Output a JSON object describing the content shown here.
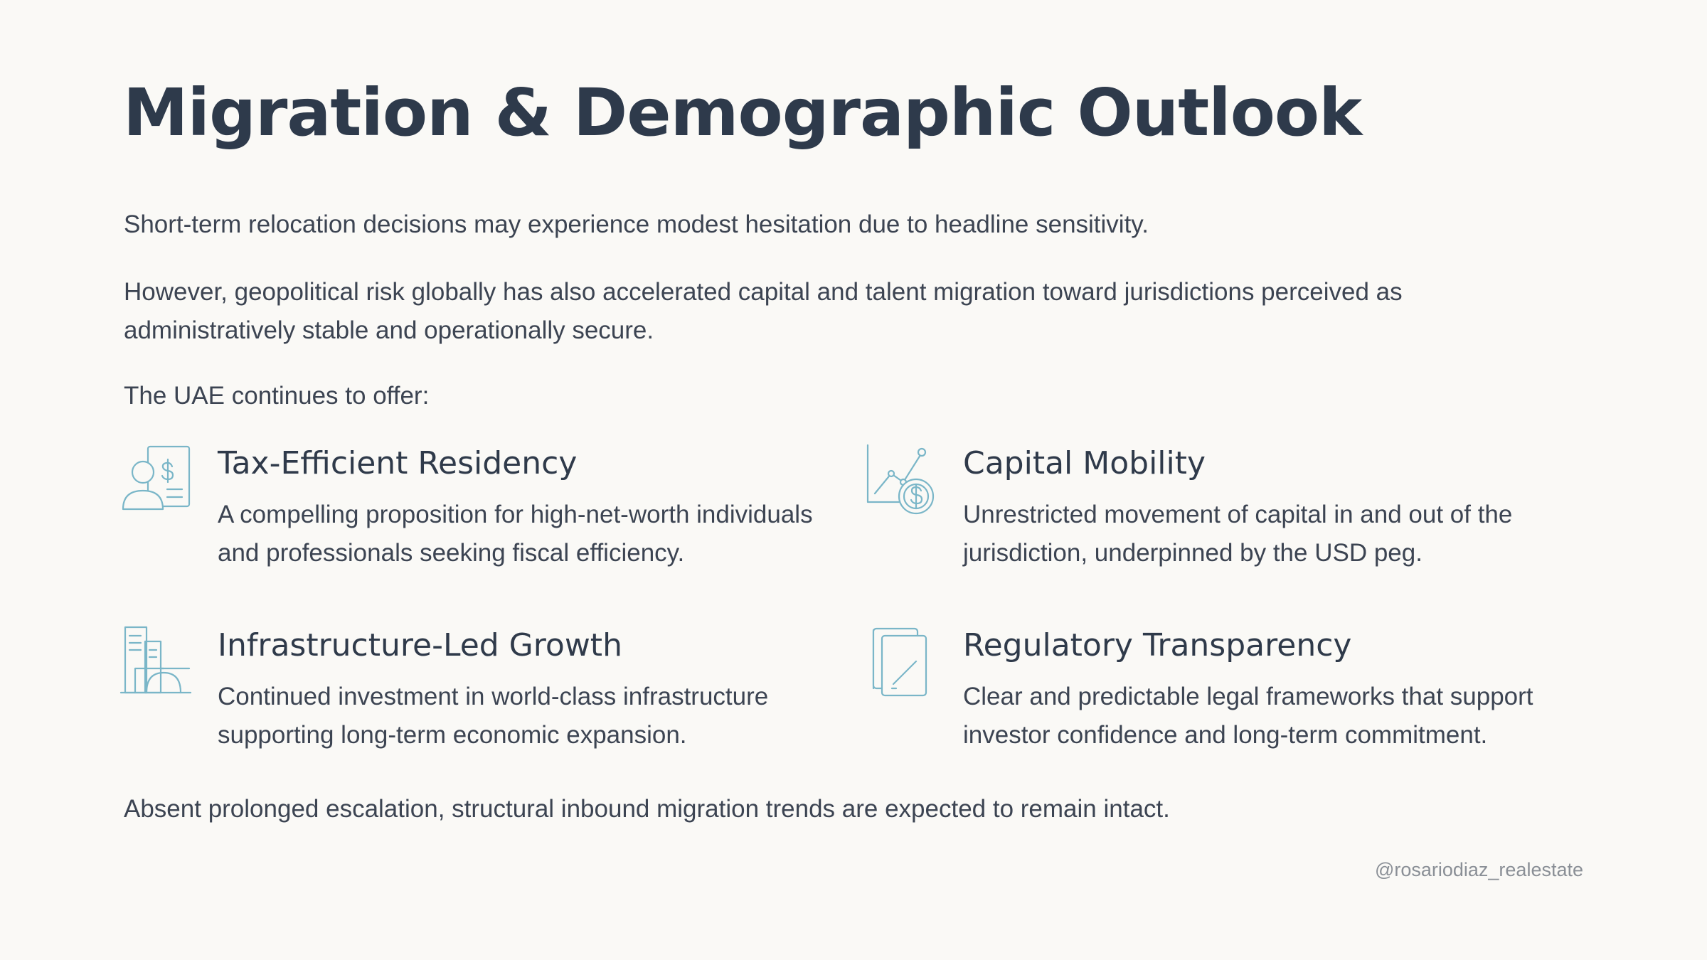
{
  "title": "Migration & Demographic Outlook",
  "paragraphs": {
    "p1": "Short-term relocation decisions may experience modest hesitation due to headline sensitivity.",
    "p2": "However, geopolitical risk globally has also accelerated capital and talent migration toward jurisdictions perceived as administratively stable and operationally secure.",
    "p3": "The UAE continues to offer:",
    "p4": "Absent prolonged escalation, structural inbound migration trends are expected to remain intact."
  },
  "features": [
    {
      "icon": "person-dollar-document-icon",
      "title": "Tax-Efficient Residency",
      "description": "A compelling proposition for high-net-worth individuals and professionals seeking fiscal efficiency."
    },
    {
      "icon": "chart-dollar-coin-icon",
      "title": "Capital Mobility",
      "description": "Unrestricted movement of capital in and out of the jurisdiction, underpinned by the USD peg."
    },
    {
      "icon": "buildings-icon",
      "title": "Infrastructure-Led Growth",
      "description": "Continued investment in world-class infrastructure supporting long-term economic expansion."
    },
    {
      "icon": "documents-icon",
      "title": "Regulatory Transparency",
      "description": "Clear and predictable legal frameworks that support investor confidence and long-term commitment."
    }
  ],
  "handle": "@rosariodiaz_realestate",
  "colors": {
    "icon_stroke": "#7ab6c8",
    "title": "#2e3a4b",
    "text": "#3c4452",
    "background": "#faf9f6"
  }
}
